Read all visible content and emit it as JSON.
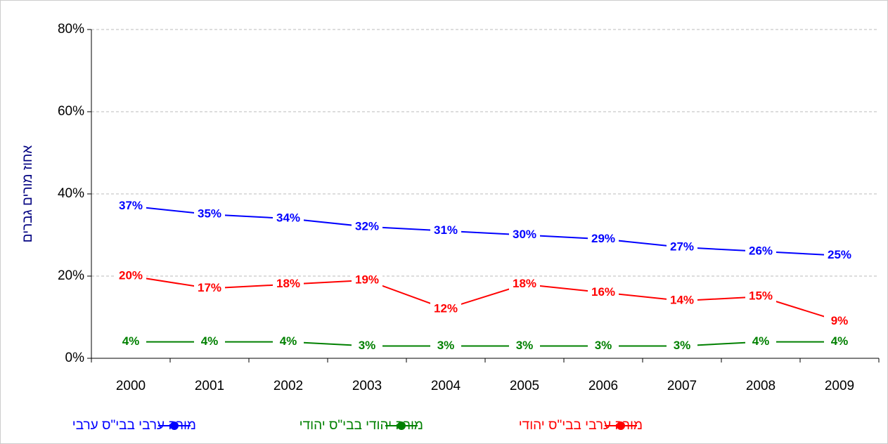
{
  "chart_data": {
    "type": "line",
    "y_label": "אחוז מורים גברים",
    "categories": [
      "2000",
      "2001",
      "2002",
      "2003",
      "2004",
      "2005",
      "2006",
      "2007",
      "2008",
      "2009"
    ],
    "series": [
      {
        "name": "מורה ערבי בבי\"ס ערבי",
        "color": "#0000ff",
        "values": [
          37,
          35,
          34,
          32,
          31,
          30,
          29,
          27,
          26,
          25
        ],
        "value_labels": [
          "37%",
          "35%",
          "34%",
          "32%",
          "31%",
          "30%",
          "29%",
          "27%",
          "26%",
          "25%"
        ]
      },
      {
        "name": "מורה יהודי בבי\"ס יהודי",
        "color": "#008000",
        "values": [
          4,
          4,
          4,
          3,
          3,
          3,
          3,
          3,
          4,
          4
        ],
        "value_labels": [
          "4%",
          "4%",
          "4%",
          "3%",
          "3%",
          "3%",
          "3%",
          "3%",
          "4%",
          "4%"
        ]
      },
      {
        "name": "מורה ערבי בבי\"ס יהודי",
        "color": "#ff0000",
        "values": [
          20,
          17,
          18,
          19,
          12,
          18,
          16,
          14,
          15,
          9
        ],
        "value_labels": [
          "20%",
          "17%",
          "18%",
          "19%",
          "12%",
          "18%",
          "16%",
          "14%",
          "15%",
          "9%"
        ]
      }
    ],
    "ylim": [
      0,
      80
    ],
    "yticks": [
      {
        "value": 0,
        "label": "0%"
      },
      {
        "value": 20,
        "label": "20%"
      },
      {
        "value": 40,
        "label": "40%"
      },
      {
        "value": 60,
        "label": "60%"
      },
      {
        "value": 80,
        "label": "80%"
      }
    ],
    "grid": true,
    "legend": "bottom"
  }
}
